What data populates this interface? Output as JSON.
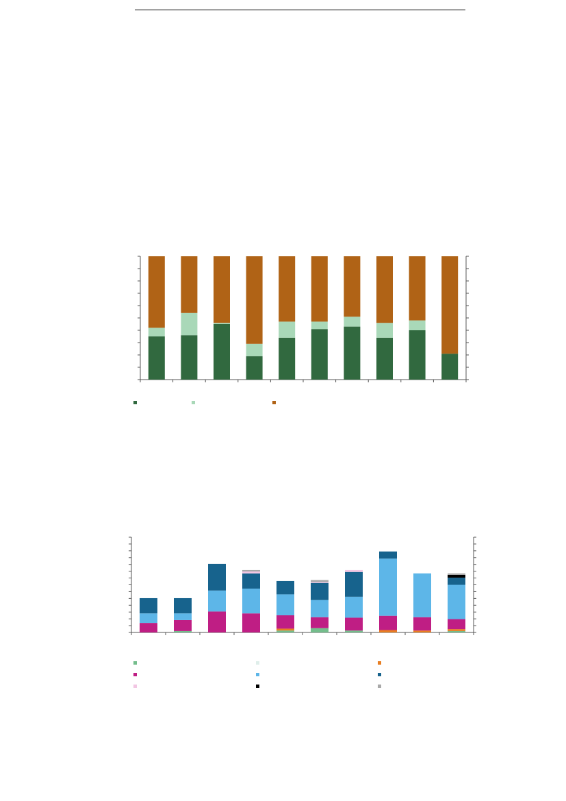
{
  "colors": {
    "axis": "#555555",
    "background": "#ffffff"
  },
  "chart_data": [
    {
      "type": "bar",
      "stacked": true,
      "categories": [
        "",
        "",
        "",
        "",
        "",
        "",
        "",
        "",
        "",
        ""
      ],
      "ylim": [
        0,
        100
      ],
      "xlabel": "",
      "ylabel": "",
      "legend_placement": "bottom",
      "series": [
        {
          "color": "#31693f",
          "values": [
            35,
            36,
            45,
            19,
            34,
            41,
            43,
            34,
            40,
            21
          ]
        },
        {
          "color": "#a9d8b8",
          "values": [
            7,
            18,
            1,
            10,
            13,
            6,
            8,
            12,
            8,
            0
          ]
        },
        {
          "color": "#b06316",
          "values": [
            58,
            46,
            54,
            71,
            53,
            53,
            49,
            54,
            52,
            79
          ]
        }
      ]
    },
    {
      "type": "bar",
      "stacked": true,
      "categories": [
        "",
        "",
        "",
        "",
        "",
        "",
        "",
        "",
        "",
        ""
      ],
      "ylim": [
        0,
        100
      ],
      "xlabel": "",
      "ylabel": "",
      "legend_placement": "bottom",
      "series": [
        {
          "color": "#74bd8c",
          "values": [
            0,
            1.5,
            0,
            0,
            2,
            4.5,
            2,
            0,
            0,
            1.5
          ]
        },
        {
          "color": "#dfeeea",
          "values": [
            0,
            0,
            0,
            0,
            0,
            0,
            0,
            0,
            0,
            0
          ]
        },
        {
          "color": "#e87e22",
          "values": [
            0,
            0,
            0,
            0,
            2,
            0,
            0,
            2.5,
            2,
            2
          ]
        },
        {
          "color": "#bf1e84",
          "values": [
            10,
            11.5,
            22,
            20,
            14,
            11.5,
            13.5,
            15,
            14,
            10.5
          ]
        },
        {
          "color": "#5db6e8",
          "values": [
            10,
            7,
            22,
            26,
            22,
            18,
            22,
            60,
            46,
            36
          ]
        },
        {
          "color": "#17638d",
          "values": [
            16,
            16,
            28,
            16,
            14,
            18,
            26,
            7.5,
            0,
            7.5
          ]
        },
        {
          "color": "#f2c6e3",
          "values": [
            0,
            0,
            0,
            2,
            0,
            1,
            2,
            0,
            0,
            0
          ]
        },
        {
          "color": "#000000",
          "values": [
            0,
            0,
            0,
            0,
            0,
            0,
            0,
            0,
            0,
            3
          ]
        },
        {
          "color": "#a9a9a9",
          "values": [
            0,
            0,
            0,
            1.5,
            0,
            2,
            0,
            0,
            0,
            1.5
          ]
        }
      ]
    }
  ]
}
